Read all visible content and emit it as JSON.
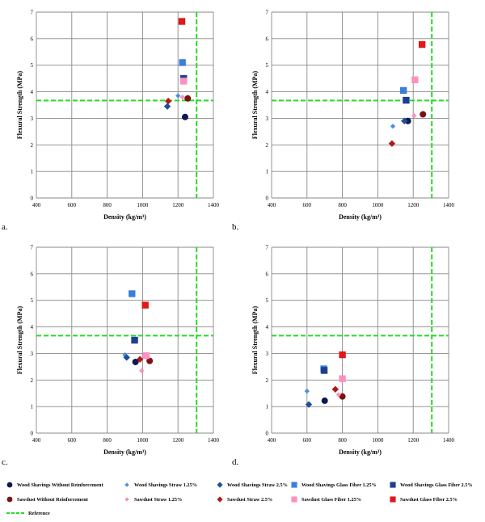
{
  "chart_data": [
    {
      "type": "scatter",
      "panel_label": "a.",
      "xlabel": "Density (kg/m³)",
      "ylabel": "Flexural Strength (MPa)",
      "xlim": [
        400,
        1400
      ],
      "ylim": [
        0,
        7
      ],
      "xticks": [
        "400",
        "600",
        "800",
        "1000",
        "1200",
        "1400"
      ],
      "yticks": [
        "0",
        "1",
        "2",
        "3",
        "4",
        "5",
        "6",
        "7"
      ],
      "grid": true,
      "reference": {
        "x": 1305,
        "y": 3.67
      },
      "points": [
        {
          "series": "Wood Shavings Without Reinforcement",
          "x": 1240,
          "y": 3.05
        },
        {
          "series": "Wood Shavings Straw 1.25%",
          "x": 1200,
          "y": 3.85
        },
        {
          "series": "Wood Shavings Straw 2.5%",
          "x": 1140,
          "y": 3.45
        },
        {
          "series": "Wood Shavings Glass Fiber 1.25%",
          "x": 1225,
          "y": 5.1
        },
        {
          "series": "Wood Shavings Glass Fiber 2.5%",
          "x": 1232,
          "y": 4.5
        },
        {
          "series": "Sawdust Without Reinforcement",
          "x": 1255,
          "y": 3.75
        },
        {
          "series": "Sawdust Straw 1.25%",
          "x": 1225,
          "y": 3.8
        },
        {
          "series": "Sawdust Straw 2.5%",
          "x": 1145,
          "y": 3.65
        },
        {
          "series": "Sawdust Glass Fiber 1.25%",
          "x": 1232,
          "y": 4.4
        },
        {
          "series": "Sawdust Glass Fiber 2.5%",
          "x": 1222,
          "y": 6.65
        }
      ]
    },
    {
      "type": "scatter",
      "panel_label": "b.",
      "xlabel": "Density (kg/m³)",
      "ylabel": "Flexural Strength (MPa)",
      "xlim": [
        400,
        1400
      ],
      "ylim": [
        0,
        7
      ],
      "xticks": [
        "400",
        "600",
        "800",
        "1000",
        "1200",
        "1400"
      ],
      "yticks": [
        "0",
        "1",
        "2",
        "3",
        "4",
        "5",
        "6",
        "7"
      ],
      "grid": true,
      "reference": {
        "x": 1305,
        "y": 3.67
      },
      "points": [
        {
          "series": "Wood Shavings Without Reinforcement",
          "x": 1170,
          "y": 2.9
        },
        {
          "series": "Wood Shavings Straw 1.25%",
          "x": 1085,
          "y": 2.7
        },
        {
          "series": "Wood Shavings Straw 2.5%",
          "x": 1150,
          "y": 2.9
        },
        {
          "series": "Wood Shavings Glass Fiber 1.25%",
          "x": 1145,
          "y": 4.05
        },
        {
          "series": "Wood Shavings Glass Fiber 2.5%",
          "x": 1160,
          "y": 3.68
        },
        {
          "series": "Sawdust Without Reinforcement",
          "x": 1255,
          "y": 3.15
        },
        {
          "series": "Sawdust Straw 1.25%",
          "x": 1205,
          "y": 3.1
        },
        {
          "series": "Sawdust Straw 2.5%",
          "x": 1080,
          "y": 2.05
        },
        {
          "series": "Sawdust Glass Fiber 1.25%",
          "x": 1210,
          "y": 4.45
        },
        {
          "series": "Sawdust Glass Fiber 2.5%",
          "x": 1250,
          "y": 5.78
        }
      ]
    },
    {
      "type": "scatter",
      "panel_label": "c.",
      "xlabel": "Density (kg/m³)",
      "ylabel": "Flexural Strength (MPa)",
      "xlim": [
        400,
        1400
      ],
      "ylim": [
        0,
        7
      ],
      "xticks": [
        "400",
        "600",
        "800",
        "1000",
        "1200",
        "1400"
      ],
      "yticks": [
        "0",
        "1",
        "2",
        "3",
        "4",
        "5",
        "6",
        "7"
      ],
      "grid": true,
      "reference": {
        "x": 1305,
        "y": 3.67
      },
      "points": [
        {
          "series": "Wood Shavings Without Reinforcement",
          "x": 960,
          "y": 2.68
        },
        {
          "series": "Wood Shavings Straw 1.25%",
          "x": 900,
          "y": 2.95
        },
        {
          "series": "Wood Shavings Straw 2.5%",
          "x": 910,
          "y": 2.85
        },
        {
          "series": "Wood Shavings Glass Fiber 1.25%",
          "x": 940,
          "y": 5.25
        },
        {
          "series": "Wood Shavings Glass Fiber 2.5%",
          "x": 955,
          "y": 3.5
        },
        {
          "series": "Sawdust Without Reinforcement",
          "x": 1040,
          "y": 2.72
        },
        {
          "series": "Sawdust Straw 1.25%",
          "x": 995,
          "y": 2.35
        },
        {
          "series": "Sawdust Straw 2.5%",
          "x": 985,
          "y": 2.78
        },
        {
          "series": "Sawdust Glass Fiber 1.25%",
          "x": 1020,
          "y": 2.92
        },
        {
          "series": "Sawdust Glass Fiber 2.5%",
          "x": 1015,
          "y": 4.82
        }
      ]
    },
    {
      "type": "scatter",
      "panel_label": "d.",
      "xlabel": "Density (kg/m³)",
      "ylabel": "Flexural Strength (MPa)",
      "xlim": [
        400,
        1400
      ],
      "ylim": [
        0,
        7
      ],
      "xticks": [
        "400",
        "600",
        "800",
        "1000",
        "1200",
        "1400"
      ],
      "yticks": [
        "0",
        "1",
        "2",
        "3",
        "4",
        "5",
        "6",
        "7"
      ],
      "grid": true,
      "reference": {
        "x": 1305,
        "y": 3.67
      },
      "points": [
        {
          "series": "Wood Shavings Without Reinforcement",
          "x": 700,
          "y": 1.22
        },
        {
          "series": "Wood Shavings Straw 1.25%",
          "x": 600,
          "y": 1.58
        },
        {
          "series": "Wood Shavings Straw 2.5%",
          "x": 610,
          "y": 1.08
        },
        {
          "series": "Wood Shavings Glass Fiber 1.25%",
          "x": 695,
          "y": 2.42
        },
        {
          "series": "Wood Shavings Glass Fiber 2.5%",
          "x": 697,
          "y": 2.36
        },
        {
          "series": "Sawdust Without Reinforcement",
          "x": 800,
          "y": 1.38
        },
        {
          "series": "Sawdust Straw 1.25%",
          "x": 778,
          "y": 1.45
        },
        {
          "series": "Sawdust Straw 2.5%",
          "x": 760,
          "y": 1.65
        },
        {
          "series": "Sawdust Glass Fiber 1.25%",
          "x": 800,
          "y": 2.05
        },
        {
          "series": "Sawdust Glass Fiber 2.5%",
          "x": 800,
          "y": 2.95
        }
      ]
    }
  ],
  "legend": {
    "series": [
      {
        "name": "Wood Shavings Without Reinforcement",
        "marker": "circle",
        "color": "#0d1a4d",
        "size": "large"
      },
      {
        "name": "Wood Shavings Straw 1.25%",
        "marker": "diamond",
        "color": "#4a90e2",
        "size": "small"
      },
      {
        "name": "Wood Shavings Straw 2.5%",
        "marker": "diamond",
        "color": "#1f4f9e",
        "size": "large"
      },
      {
        "name": "Wood Shavings Glass Fiber 1.25%",
        "marker": "square",
        "color": "#3a7fdc",
        "size": "large"
      },
      {
        "name": "Wood Shavings Glass Fiber 2.5%",
        "marker": "square",
        "color": "#1d3f8f",
        "size": "large"
      },
      {
        "name": "Sawdust Without Reinforcement",
        "marker": "circle",
        "color": "#7a1212",
        "size": "large"
      },
      {
        "name": "Sawdust Straw 1.25%",
        "marker": "diamond",
        "color": "#ff8fc0",
        "size": "small"
      },
      {
        "name": "Sawdust Straw 2.5%",
        "marker": "diamond",
        "color": "#b01a1a",
        "size": "large"
      },
      {
        "name": "Sawdust Glass Fiber 1.25%",
        "marker": "square",
        "color": "#ff8fc0",
        "size": "large"
      },
      {
        "name": "Sawdust Glass Fiber 2.5%",
        "marker": "square",
        "color": "#e01818",
        "size": "large"
      }
    ],
    "reference": {
      "name": "Reference",
      "color": "#22dd22"
    }
  },
  "colors": {
    "grid": "#888888",
    "reference": "#22dd22"
  }
}
